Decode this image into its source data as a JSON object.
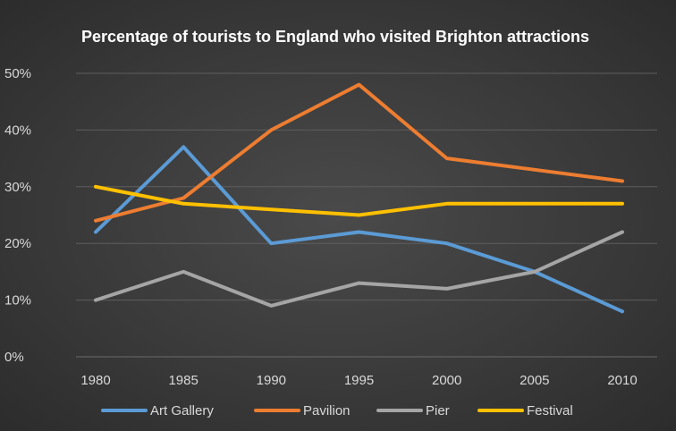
{
  "chart_data": {
    "type": "line",
    "title": "Percentage of tourists to England who visited Brighton attractions",
    "xlabel": "",
    "ylabel": "",
    "categories": [
      "1980",
      "1985",
      "1990",
      "1995",
      "2000",
      "2005",
      "2010"
    ],
    "ylim": [
      0,
      50
    ],
    "yticks": [
      "0%",
      "10%",
      "20%",
      "30%",
      "40%",
      "50%"
    ],
    "grid": true,
    "legend_position": "bottom",
    "series": [
      {
        "name": "Art Gallery",
        "color": "#5b9bd5",
        "values": [
          22,
          37,
          20,
          22,
          20,
          15,
          8
        ]
      },
      {
        "name": "Pavilion",
        "color": "#ed7d31",
        "values": [
          24,
          28,
          40,
          48,
          35,
          33,
          31
        ]
      },
      {
        "name": "Pier",
        "color": "#a5a5a5",
        "values": [
          10,
          15,
          9,
          13,
          12,
          15,
          22
        ]
      },
      {
        "name": "Festival",
        "color": "#ffc000",
        "values": [
          30,
          27,
          26,
          25,
          27,
          27,
          27
        ]
      }
    ]
  }
}
